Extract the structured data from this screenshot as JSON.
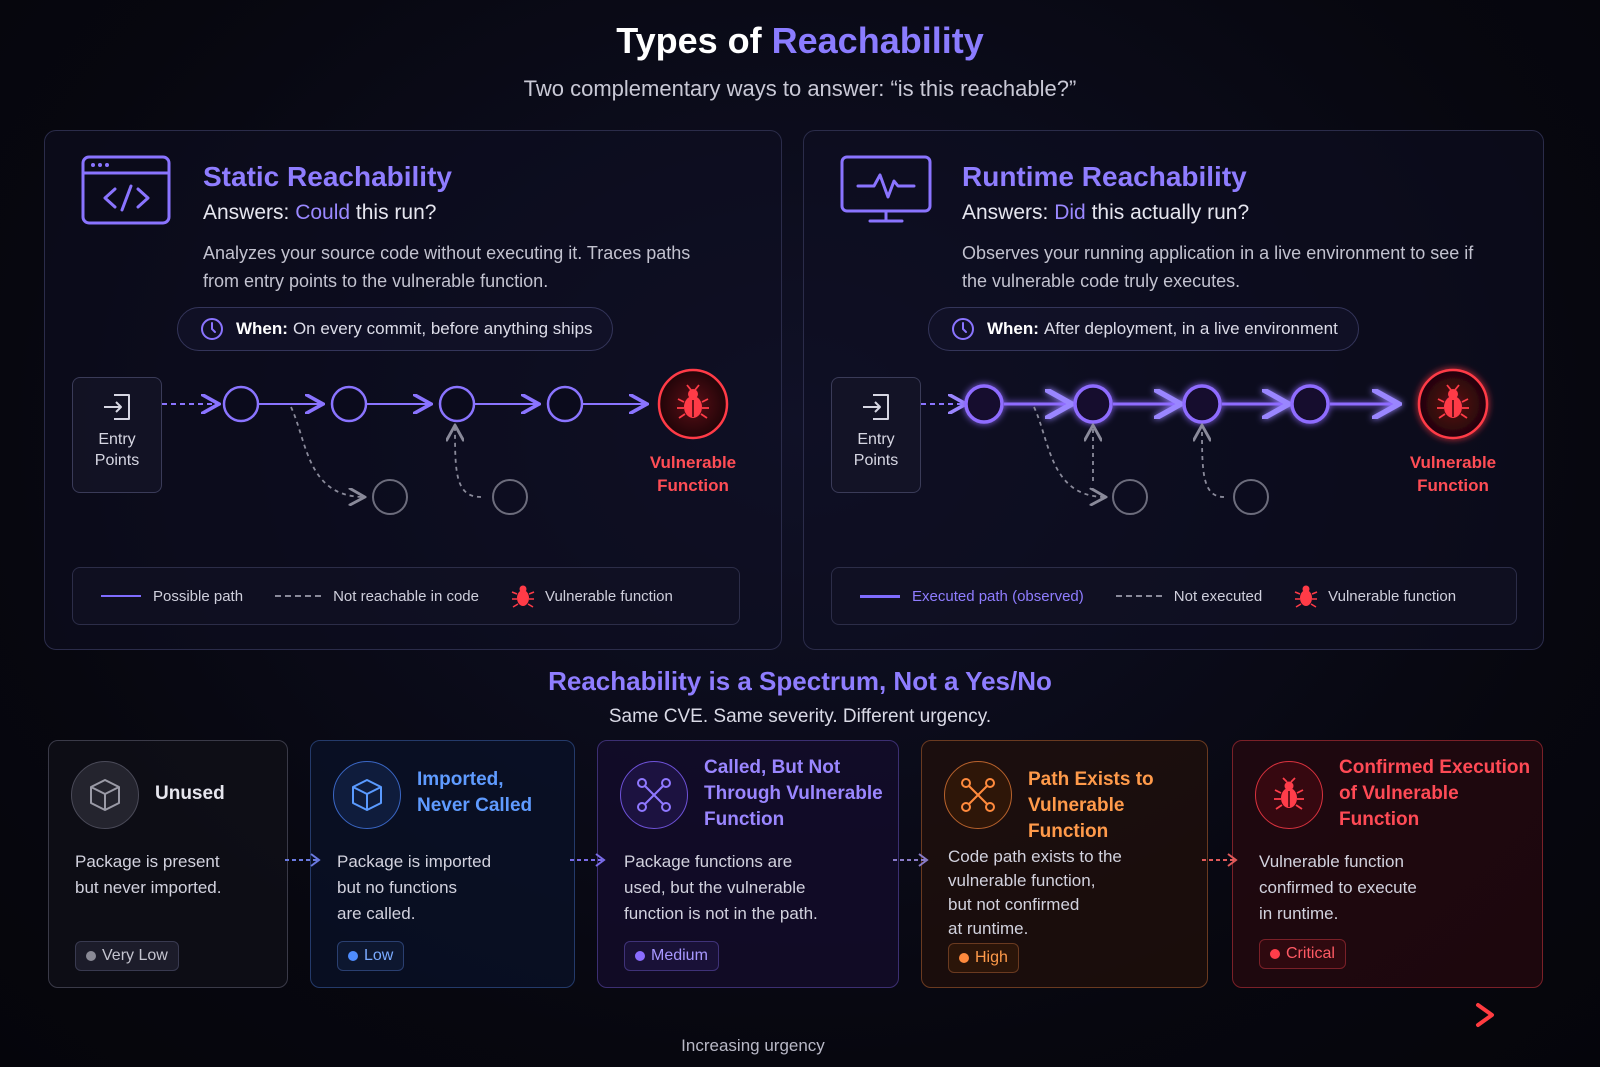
{
  "header": {
    "title_prefix": "Types of",
    "title_accent": "Reachability",
    "subtitle": "Two complementary ways to answer: “is this reachable?”"
  },
  "static_panel": {
    "icon": "code-window-icon",
    "title": "Static Reachability",
    "question_prefix": "Answers:",
    "question_highlight": "Could",
    "question_suffix": "this run?",
    "description": "Analyzes your source code without executing it. Traces paths from entry points to the vulnerable function.",
    "when_label": "When:",
    "when_text": "On every commit, before anything ships",
    "entry_label_line1": "Entry",
    "entry_label_line2": "Points",
    "vuln_label_line1": "Vulnerable",
    "vuln_label_line2": "Function",
    "legend": {
      "solid": "Possible path",
      "dashed": "Not reachable in code",
      "bug": "Vulnerable function"
    }
  },
  "runtime_panel": {
    "icon": "pulse-monitor-icon",
    "title": "Runtime Reachability",
    "question_prefix": "Answers:",
    "question_highlight": "Did",
    "question_suffix": "this actually run?",
    "description": "Observes your running application in a live environment to see if the vulnerable code truly executes.",
    "when_label": "When:",
    "when_text": "After deployment, in a live environment",
    "entry_label_line1": "Entry",
    "entry_label_line2": "Points",
    "vuln_label_line1": "Vulnerable",
    "vuln_label_line2": "Function",
    "legend": {
      "solid": "Executed path (observed)",
      "dashed": "Not executed",
      "bug": "Vulnerable function"
    }
  },
  "spectrum": {
    "title": "Reachability is a Spectrum, Not a Yes/No",
    "subtitle": "Same CVE. Same severity. Different urgency.",
    "cards": [
      {
        "icon": "package-icon",
        "title_lines": [
          "Unused"
        ],
        "desc_lines": [
          "Package is present",
          "but never imported."
        ],
        "level": "Very Low",
        "color": "#8a8a96"
      },
      {
        "icon": "package-icon",
        "title_lines": [
          "Imported,",
          "Never Called"
        ],
        "desc_lines": [
          "Package is imported",
          "but no functions",
          "are called."
        ],
        "level": "Low",
        "color": "#4f8dff"
      },
      {
        "icon": "branching-paths-icon",
        "title_lines": [
          "Called, But Not",
          "Through Vulnerable",
          "Function"
        ],
        "desc_lines": [
          "Package functions are",
          "used, but the vulnerable",
          "function is not in the path."
        ],
        "level": "Medium",
        "color": "#8a6cff"
      },
      {
        "icon": "branching-paths-icon",
        "title_lines": [
          "Path Exists to",
          "Vulnerable Function"
        ],
        "desc_lines": [
          "Code path exists to the",
          "vulnerable function,",
          "but not confirmed",
          "at runtime."
        ],
        "level": "High",
        "color": "#ff8a3d"
      },
      {
        "icon": "bug-icon",
        "title_lines": [
          "Confirmed Execution",
          "of Vulnerable",
          "Function"
        ],
        "desc_lines": [
          "Vulnerable function",
          "confirmed to execute",
          "in runtime."
        ],
        "level": "Critical",
        "color": "#ff3d4a"
      }
    ],
    "urgency_label": "Increasing urgency"
  }
}
